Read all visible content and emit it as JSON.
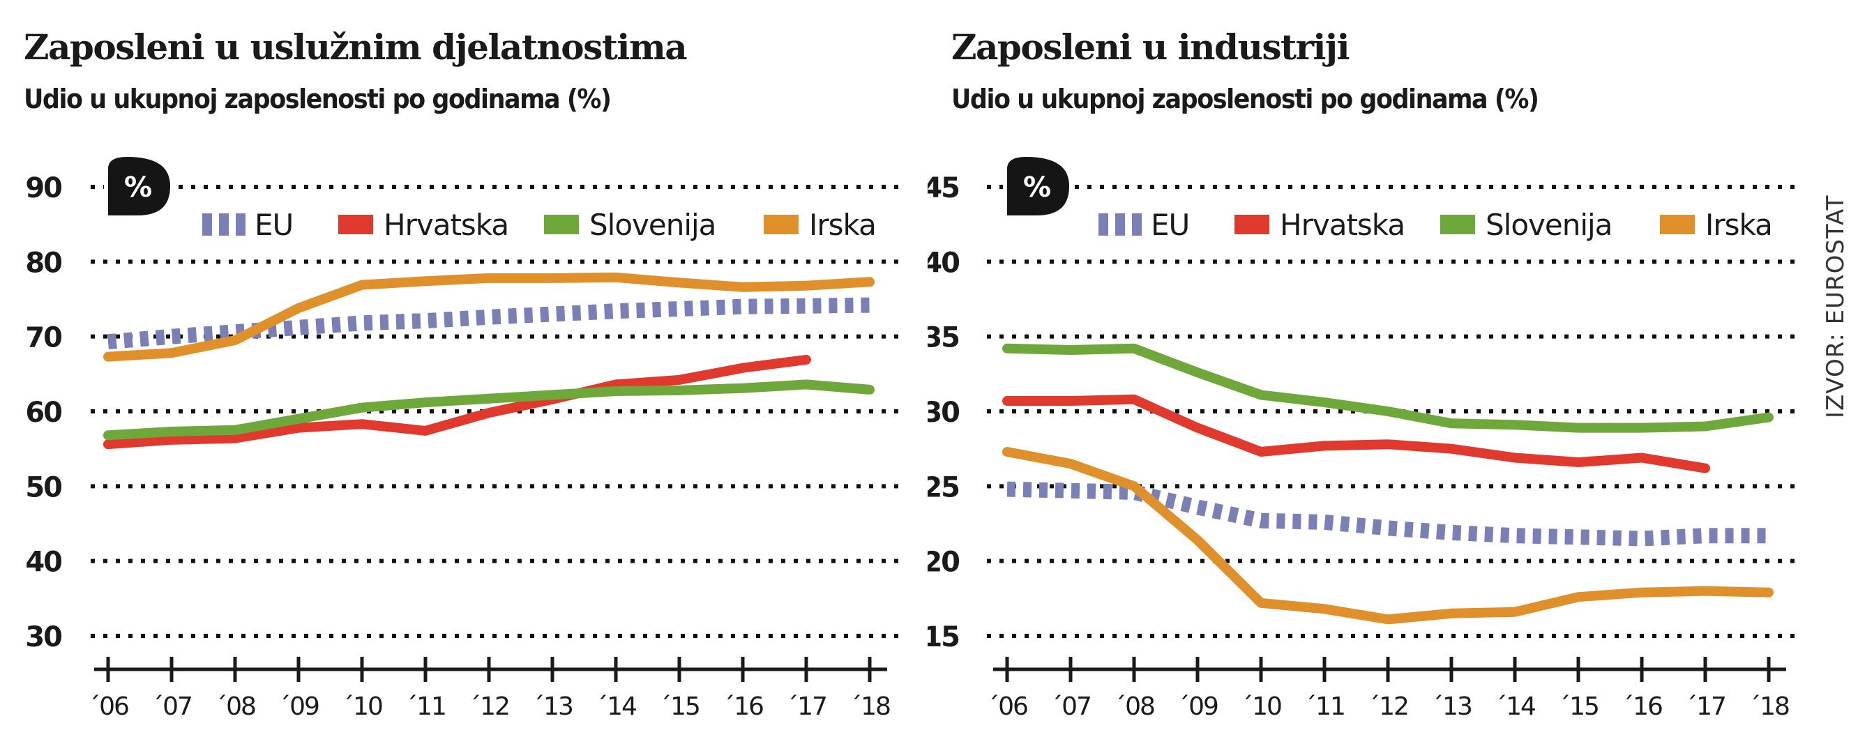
{
  "source_label": "IZVOR: EUROSTAT",
  "unit_badge": "%",
  "colors": {
    "EU": "#7a80b5",
    "Hrvatska": "#e03a2f",
    "Slovenija": "#6fa83a",
    "Irska": "#e0902a",
    "grid": "#111111",
    "axis": "#1a1a1a"
  },
  "chart_data": [
    {
      "type": "line",
      "title": "Zaposleni u uslužnim djelatnostima",
      "subtitle": "Udio u ukupnoj zaposlenosti po godinama (%)",
      "xlabel": "",
      "ylabel": "%",
      "x": [
        "´06",
        "´07",
        "´08",
        "´09",
        "´10",
        "´11",
        "´12",
        "´13",
        "´14",
        "´15",
        "´16",
        "´17",
        "´18"
      ],
      "ylim": [
        30,
        90
      ],
      "yticks": [
        90,
        80,
        70,
        60,
        50,
        40,
        30
      ],
      "grid": true,
      "legend_position": "top",
      "series": [
        {
          "name": "EU",
          "style": "dashed",
          "values": [
            69.3,
            70.0,
            70.6,
            71.2,
            71.8,
            72.1,
            72.6,
            73.0,
            73.4,
            73.7,
            74.0,
            74.1,
            74.2
          ]
        },
        {
          "name": "Hrvatska",
          "style": "solid",
          "values": [
            55.6,
            56.2,
            56.4,
            57.8,
            58.3,
            57.4,
            59.8,
            61.6,
            63.6,
            64.2,
            65.8,
            66.9,
            null
          ]
        },
        {
          "name": "Slovenija",
          "style": "solid",
          "values": [
            56.8,
            57.3,
            57.5,
            59.0,
            60.5,
            61.2,
            61.7,
            62.2,
            62.7,
            62.8,
            63.1,
            63.6,
            62.9
          ]
        },
        {
          "name": "Irska",
          "style": "solid",
          "values": [
            67.3,
            67.8,
            69.5,
            73.8,
            76.9,
            77.4,
            77.8,
            77.8,
            77.9,
            77.2,
            76.6,
            76.8,
            77.3
          ]
        }
      ]
    },
    {
      "type": "line",
      "title": "Zaposleni u industriji",
      "subtitle": "Udio u ukupnoj zaposlenosti po godinama (%)",
      "xlabel": "",
      "ylabel": "%",
      "x": [
        "´06",
        "´07",
        "´08",
        "´09",
        "´10",
        "´11",
        "´12",
        "´13",
        "´14",
        "´15",
        "´16",
        "´17",
        "´18"
      ],
      "ylim": [
        15,
        45
      ],
      "yticks": [
        45,
        40,
        35,
        30,
        25,
        20,
        15
      ],
      "grid": true,
      "legend_position": "top",
      "series": [
        {
          "name": "EU",
          "style": "dashed",
          "values": [
            24.8,
            24.7,
            24.6,
            23.6,
            22.7,
            22.6,
            22.2,
            21.9,
            21.7,
            21.6,
            21.5,
            21.7,
            21.7
          ]
        },
        {
          "name": "Hrvatska",
          "style": "solid",
          "values": [
            30.7,
            30.7,
            30.8,
            28.9,
            27.3,
            27.7,
            27.8,
            27.5,
            26.9,
            26.6,
            26.9,
            26.2,
            null
          ]
        },
        {
          "name": "Slovenija",
          "style": "solid",
          "values": [
            34.2,
            34.1,
            34.2,
            32.6,
            31.1,
            30.6,
            30.0,
            29.2,
            29.1,
            28.9,
            28.9,
            29.0,
            29.6
          ]
        },
        {
          "name": "Irska",
          "style": "solid",
          "values": [
            27.3,
            26.5,
            25.0,
            21.4,
            17.2,
            16.8,
            16.1,
            16.5,
            16.6,
            17.6,
            17.9,
            18.0,
            17.9
          ]
        }
      ]
    }
  ]
}
